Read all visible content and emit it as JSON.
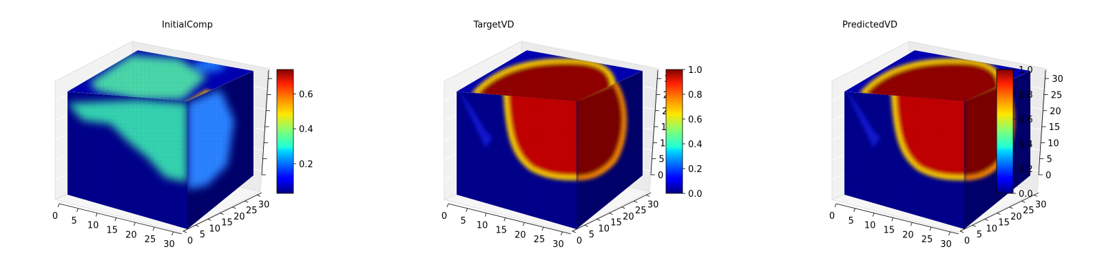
{
  "chart_data": [
    {
      "type": "heatmap",
      "subtype": "3d-voxel-cube",
      "title": "InitialComp",
      "colormap": "jet",
      "x_ticks": [
        "0",
        "5",
        "10",
        "15",
        "20",
        "25",
        "30"
      ],
      "y_ticks": [
        "0",
        "5",
        "10",
        "15",
        "20",
        "25",
        "30"
      ],
      "z_ticks": [],
      "colorbar": {
        "min": 0.03,
        "max": 0.74,
        "ticks": [
          "0.2",
          "0.4",
          "0.6"
        ]
      },
      "grid": true
    },
    {
      "type": "heatmap",
      "subtype": "3d-voxel-cube",
      "title": "TargetVD",
      "colormap": "jet",
      "x_ticks": [
        "0",
        "5",
        "10",
        "15",
        "20",
        "25",
        "30"
      ],
      "y_ticks": [
        "0",
        "5",
        "10",
        "15",
        "20",
        "25",
        "30"
      ],
      "z_ticks": [
        "0",
        "5",
        "10",
        "15",
        "20",
        "25",
        "30"
      ],
      "colorbar": {
        "min": 0.0,
        "max": 1.0,
        "ticks": [
          "0.0",
          "0.2",
          "0.4",
          "0.6",
          "0.8",
          "1.0"
        ]
      },
      "grid": true
    },
    {
      "type": "heatmap",
      "subtype": "3d-voxel-cube",
      "title": "PredictedVD",
      "colormap": "jet",
      "x_ticks": [
        "0",
        "5",
        "10",
        "15",
        "20",
        "25",
        "30"
      ],
      "y_ticks": [
        "0",
        "5",
        "10",
        "15",
        "20",
        "25",
        "30"
      ],
      "z_ticks": [
        "0",
        "5",
        "10",
        "15",
        "20",
        "25",
        "30"
      ],
      "colorbar": {
        "min": 0.0,
        "max": 1.0,
        "ticks": [
          "0.0",
          "0.2",
          "0.4",
          "0.6",
          "0.8",
          "1.0"
        ]
      },
      "grid": true
    }
  ]
}
